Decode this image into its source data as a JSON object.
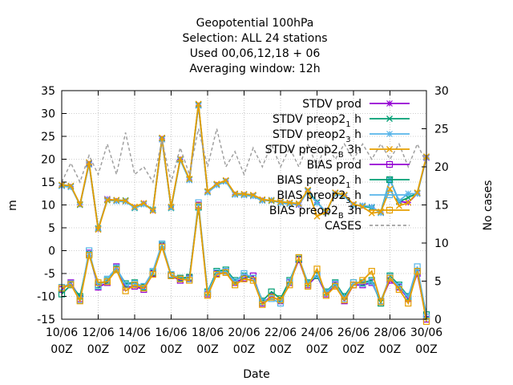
{
  "chart_data": {
    "type": "line",
    "title_lines": [
      "Geopotential 100hPa",
      "Selection: ALL      24 stations",
      "Used  00,06,12,18 + 06",
      "Averaging window: 12h"
    ],
    "xlabel": "Date",
    "ylabel": "m",
    "y2label": "No cases",
    "ylim": [
      -15,
      35
    ],
    "y2lim": [
      0,
      30
    ],
    "yticks": [
      -15,
      -10,
      -5,
      0,
      5,
      10,
      15,
      20,
      25,
      30,
      35
    ],
    "y2ticks": [
      0,
      5,
      10,
      15,
      20,
      25,
      30
    ],
    "xticks": [
      {
        "day": 0,
        "line1": "10/06",
        "line2": "00Z"
      },
      {
        "day": 2,
        "line1": "12/06",
        "line2": "00Z"
      },
      {
        "day": 4,
        "line1": "14/06",
        "line2": "00Z"
      },
      {
        "day": 6,
        "line1": "16/06",
        "line2": "00Z"
      },
      {
        "day": 8,
        "line1": "18/06",
        "line2": "00Z"
      },
      {
        "day": 10,
        "line1": "20/06",
        "line2": "00Z"
      },
      {
        "day": 12,
        "line1": "22/06",
        "line2": "00Z"
      },
      {
        "day": 14,
        "line1": "24/06",
        "line2": "00Z"
      },
      {
        "day": 16,
        "line1": "26/06",
        "line2": "00Z"
      },
      {
        "day": 18,
        "line1": "28/06",
        "line2": "00Z"
      },
      {
        "day": 20,
        "line1": "30/06",
        "line2": "00Z"
      }
    ],
    "xrange_days": [
      0,
      20
    ],
    "grid": true,
    "legend_position": "top-right",
    "x_days": [
      0,
      0.5,
      1,
      1.5,
      2,
      2.5,
      3,
      3.5,
      4,
      4.5,
      5,
      5.5,
      6,
      6.5,
      7,
      7.5,
      8,
      8.5,
      9,
      9.5,
      10,
      10.5,
      11,
      11.5,
      12,
      12.5,
      13,
      13.5,
      14,
      14.5,
      15,
      15.5,
      16,
      16.5,
      17,
      17.5,
      18,
      18.5,
      19,
      19.5,
      20
    ],
    "series": [
      {
        "name": "STDV prod",
        "color": "#9400d3",
        "marker": "star",
        "axis": "y1",
        "dash": "",
        "values": [
          14.2,
          14,
          10.1,
          19,
          4.7,
          11.3,
          10.9,
          10.8,
          9.5,
          10.3,
          8.8,
          24.5,
          9.5,
          20,
          15.5,
          31.8,
          12.8,
          14.4,
          15.2,
          12.3,
          12.2,
          12,
          11,
          11,
          10.5,
          10.3,
          10,
          13,
          10.5,
          8.5,
          12.5,
          12,
          10,
          9.8,
          9.5,
          8.3,
          15.5,
          10.8,
          10.5,
          12.5,
          20.3
        ]
      },
      {
        "name": "STDV preop2_1h",
        "color": "#009e73",
        "marker": "cross",
        "axis": "y1",
        "dash": "",
        "values": [
          14.3,
          14.1,
          10,
          19.2,
          4.9,
          11,
          11,
          11,
          9.3,
          10.2,
          9,
          24.6,
          9.3,
          20,
          15.6,
          32,
          12.9,
          14.5,
          15.3,
          12.4,
          12.3,
          12.1,
          11.1,
          10.9,
          10.6,
          10.4,
          10.2,
          13.2,
          10.6,
          8.4,
          12.6,
          12.1,
          10.1,
          9.7,
          9.4,
          8.4,
          15.6,
          10.7,
          11.6,
          12.6,
          20.5
        ]
      },
      {
        "name": "STDV preop2_3h",
        "color": "#56b4e9",
        "marker": "star",
        "axis": "y1",
        "dash": "",
        "values": [
          14.1,
          13.9,
          10.2,
          18.8,
          4.8,
          11.2,
          10.8,
          10.7,
          9.4,
          10.1,
          8.9,
          24.3,
          9.4,
          19.8,
          15.4,
          31.7,
          12.7,
          14.3,
          15.1,
          12.2,
          12.1,
          11.9,
          10.9,
          11.1,
          10.4,
          10.2,
          10.1,
          12.9,
          10.4,
          8.6,
          12.4,
          11.9,
          9.9,
          9.9,
          9.6,
          8.2,
          15.4,
          10.9,
          12.5,
          12.4,
          20.4
        ]
      },
      {
        "name": "STDV preop2_B3h",
        "color": "#e69f00",
        "marker": "cross",
        "axis": "y1",
        "dash": "",
        "values": [
          14.4,
          14.2,
          10.1,
          19.3,
          4.6,
          11.1,
          11.1,
          10.9,
          9.6,
          10.4,
          8.7,
          24.7,
          9.6,
          20.1,
          15.7,
          32.1,
          13,
          14.6,
          15.4,
          12.5,
          12.4,
          12.2,
          11.2,
          11,
          10.7,
          10.5,
          10.3,
          13.3,
          7.5,
          8.5,
          12.7,
          12.2,
          10.2,
          9.6,
          8.2,
          8.5,
          13.5,
          9.8,
          10.5,
          12.7,
          20.6
        ]
      },
      {
        "name": "BIAS prod",
        "color": "#9400d3",
        "marker": "square",
        "axis": "y1",
        "dash": "",
        "values": [
          -8.5,
          -7,
          -10.5,
          -0.5,
          -8,
          -7,
          -3.5,
          -8,
          -7.8,
          -8.5,
          -5,
          1,
          -5.5,
          -6.5,
          -6,
          10,
          -9.5,
          -5,
          -4.5,
          -7,
          -6,
          -5.5,
          -11.5,
          -10,
          -11,
          -7,
          -2,
          -7.5,
          -5.5,
          -9.5,
          -7.5,
          -11,
          -7.5,
          -7.5,
          -7,
          -11,
          -6.5,
          -8,
          -10.5,
          -5,
          -15
        ]
      },
      {
        "name": "BIAS preop2_1h",
        "color": "#009e73",
        "marker": "square",
        "axis": "y1",
        "dash": "",
        "values": [
          -9.5,
          -7.5,
          -10,
          -0.8,
          -7.5,
          -6.5,
          -4,
          -7.2,
          -7,
          -8,
          -4.8,
          1.2,
          -5.3,
          -6,
          -5.8,
          9.5,
          -9,
          -4.5,
          -4.2,
          -6.5,
          -5.5,
          -6,
          -11,
          -9,
          -10.5,
          -6.5,
          -1.8,
          -7,
          -5.5,
          -9,
          -7,
          -10,
          -7,
          -7,
          -6.5,
          -11.5,
          -5.5,
          -7.5,
          -10,
          -4.5,
          -14
        ]
      },
      {
        "name": "BIAS preop2_3h",
        "color": "#56b4e9",
        "marker": "square",
        "axis": "y1",
        "dash": "",
        "values": [
          -8,
          -7.2,
          -10.8,
          0,
          -7.8,
          -6.2,
          -3.7,
          -7.5,
          -7.2,
          -7.8,
          -4.5,
          1.5,
          -5.2,
          -6.2,
          -6.2,
          10.5,
          -9.2,
          -4.8,
          -4.5,
          -6.8,
          -5,
          -6,
          -11.2,
          -10.5,
          -11.5,
          -6.8,
          -1.5,
          -7.2,
          -5.2,
          -9.2,
          -7.2,
          -10.5,
          -7,
          -7.2,
          -6.8,
          -11,
          -5.8,
          -7.8,
          -10.2,
          -3.5,
          -14.5
        ]
      },
      {
        "name": "BIAS preop2_B3h",
        "color": "#e69f00",
        "marker": "square",
        "axis": "y1",
        "dash": "",
        "values": [
          -8.2,
          -7.4,
          -11,
          -1,
          -7,
          -6.8,
          -4.2,
          -8.8,
          -7.5,
          -8.2,
          -5.2,
          0.8,
          -5.5,
          -6.2,
          -6.5,
          9.8,
          -9.8,
          -5.2,
          -4.8,
          -7.5,
          -6.2,
          -6.5,
          -11.8,
          -10.2,
          -10.8,
          -7.5,
          -1.5,
          -7.8,
          -4,
          -9.8,
          -7.8,
          -10.8,
          -7.5,
          -6.5,
          -4.5,
          -11.2,
          -6,
          -8.5,
          -11.5,
          -4.5,
          -15.5
        ]
      },
      {
        "name": "CASES",
        "color": "#a0a0a0",
        "marker": "none",
        "axis": "y2",
        "dash": "4,3",
        "values": [
          18,
          20.5,
          18,
          21.5,
          19,
          23,
          19,
          24.5,
          19,
          20,
          18,
          23.5,
          18,
          22.5,
          19,
          25,
          20,
          25,
          20,
          22,
          19,
          22.5,
          20,
          23,
          20,
          22.5,
          20,
          23,
          20,
          23,
          21,
          23,
          21,
          23,
          21,
          23,
          21,
          23,
          20,
          23,
          20.5
        ]
      }
    ]
  }
}
